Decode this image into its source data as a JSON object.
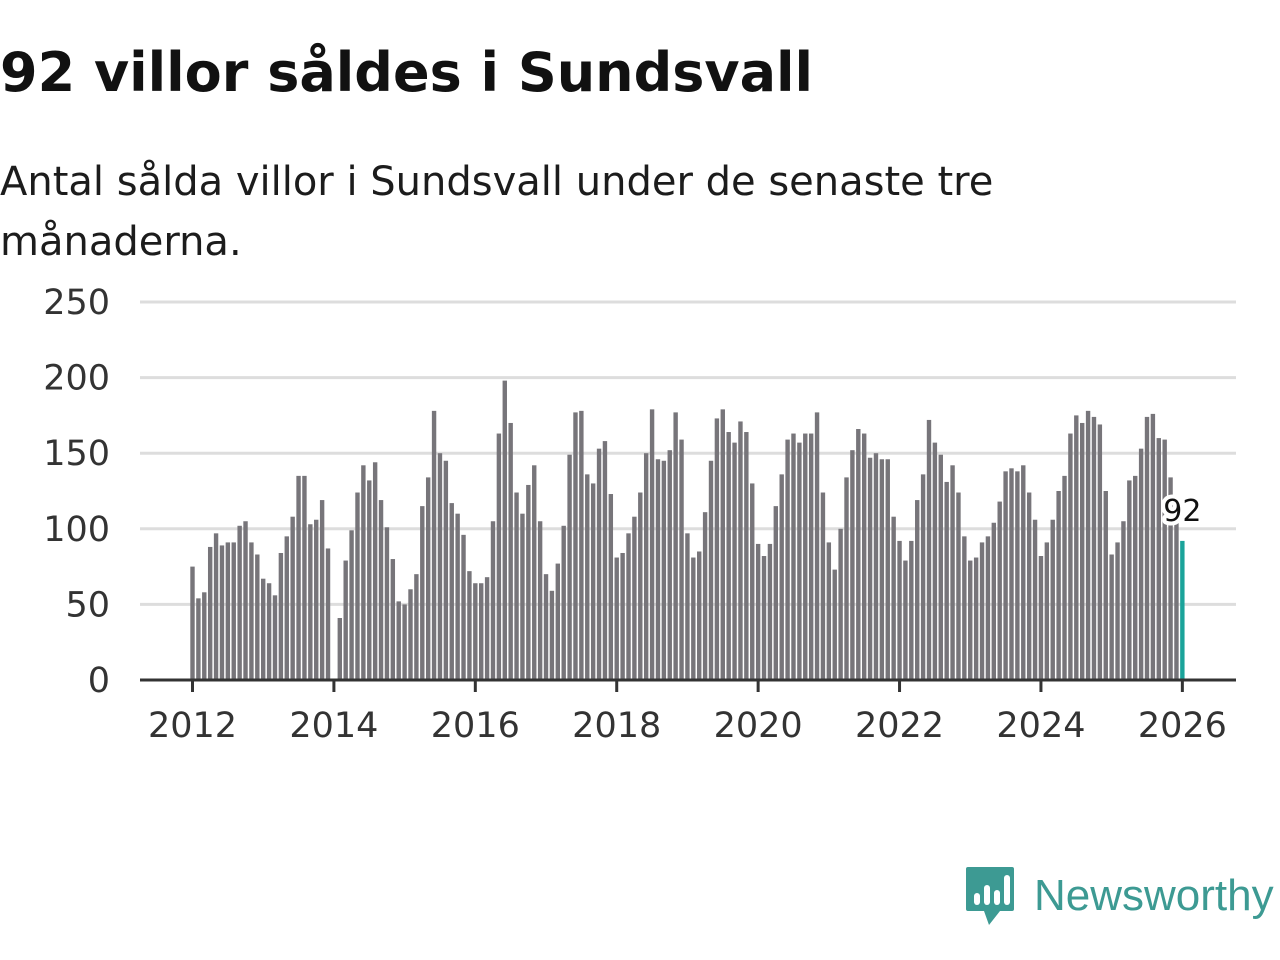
{
  "title": "92 villor såldes i Sundsvall",
  "subtitle": "Antal sålda villor i Sundsvall under de senaste tre månaderna.",
  "brand": {
    "name": "Newsworthy",
    "color": "#3d9a93",
    "icon": "bar-chart-speech-bubble-icon"
  },
  "colors": {
    "bar": "#77757a",
    "highlight": "#1aa39a",
    "grid": "#dddddd",
    "axis": "#333333"
  },
  "chart_data": {
    "type": "bar",
    "title": "Antal sålda villor i Sundsvall",
    "xlabel": "",
    "ylabel": "",
    "ylim": [
      0,
      250
    ],
    "yticks": [
      0,
      50,
      100,
      150,
      200,
      250
    ],
    "xticks": [
      "2012",
      "2014",
      "2016",
      "2018",
      "2020",
      "2022",
      "2024",
      "2026"
    ],
    "start": "2012-01",
    "end": "2026-01",
    "grid": true,
    "annotation": {
      "index": 168,
      "label": "92"
    },
    "values": [
      75,
      54,
      58,
      88,
      97,
      89,
      91,
      91,
      102,
      105,
      91,
      83,
      67,
      64,
      56,
      84,
      95,
      108,
      135,
      135,
      103,
      106,
      119,
      87,
      null,
      41,
      79,
      99,
      124,
      142,
      132,
      144,
      119,
      101,
      80,
      52,
      50,
      60,
      70,
      115,
      134,
      178,
      150,
      145,
      117,
      110,
      96,
      72,
      64,
      64,
      68,
      105,
      163,
      198,
      170,
      124,
      110,
      129,
      142,
      105,
      70,
      59,
      77,
      102,
      149,
      177,
      178,
      136,
      130,
      153,
      158,
      123,
      81,
      84,
      97,
      108,
      124,
      150,
      179,
      146,
      145,
      152,
      177,
      159,
      97,
      81,
      85,
      111,
      145,
      173,
      179,
      164,
      157,
      171,
      164,
      130,
      90,
      82,
      90,
      115,
      136,
      159,
      163,
      157,
      163,
      163,
      177,
      124,
      91,
      73,
      100,
      134,
      152,
      166,
      163,
      147,
      150,
      146,
      146,
      108,
      92,
      79,
      92,
      119,
      136,
      172,
      157,
      149,
      131,
      142,
      124,
      95,
      79,
      81,
      91,
      95,
      104,
      118,
      138,
      140,
      138,
      142,
      124,
      106,
      82,
      91,
      106,
      125,
      135,
      163,
      175,
      170,
      178,
      174,
      169,
      125,
      83,
      91,
      105,
      132,
      135,
      153,
      174,
      176,
      160,
      159,
      134,
      106,
      92
    ]
  }
}
